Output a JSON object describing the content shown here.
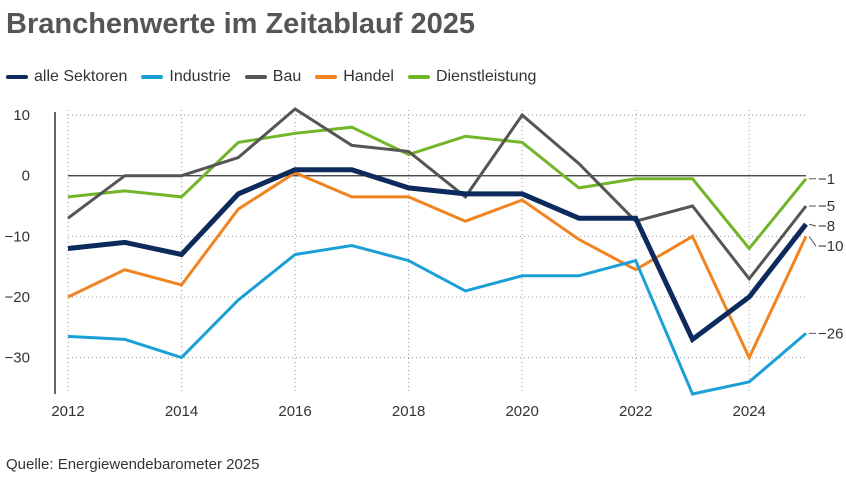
{
  "chart_data": {
    "type": "line",
    "title": "Branchenwerte im Zeitablauf 2025",
    "source": "Quelle: Energiewendebarometer 2025",
    "xlabel": "",
    "ylabel": "",
    "x": [
      2012,
      2013,
      2014,
      2015,
      2016,
      2017,
      2018,
      2019,
      2020,
      2021,
      2022,
      2023,
      2024,
      2025
    ],
    "xticks": [
      "2012",
      "2014",
      "2016",
      "2018",
      "2020",
      "2022",
      "2024"
    ],
    "xtick_values": [
      2012,
      2014,
      2016,
      2018,
      2020,
      2022,
      2024
    ],
    "xlim": [
      2012,
      2025
    ],
    "yticks": [
      10,
      0,
      -10,
      -20,
      -30
    ],
    "ytick_labels": [
      "10",
      "0",
      "−10",
      "−20",
      "−30"
    ],
    "ylim": [
      -36,
      11.5
    ],
    "grid": "dotted",
    "legend_position": "top-left",
    "series": [
      {
        "name": "alle Sektoren",
        "color": "#0d2a5c",
        "width": 5,
        "values": [
          -12,
          -11,
          -13,
          -3,
          1,
          1,
          -2,
          -3,
          -3,
          -7,
          -7,
          -27,
          -20,
          -8
        ],
        "end_label": "−8"
      },
      {
        "name": "Industrie",
        "color": "#1a9fd6",
        "width": 3,
        "values": [
          -26.5,
          -27,
          -30,
          -20.5,
          -13,
          -11.5,
          -14,
          -19,
          -16.5,
          -16.5,
          -14,
          -36,
          -34,
          -26
        ],
        "end_label": "−26"
      },
      {
        "name": "Bau",
        "color": "#555555",
        "width": 3,
        "values": [
          -7,
          0,
          0,
          3,
          11,
          5,
          4,
          -3.5,
          10,
          2,
          -7.5,
          -5,
          -17,
          -5
        ],
        "end_label": "−5"
      },
      {
        "name": "Handel",
        "color": "#ef8420",
        "width": 3,
        "values": [
          -20,
          -15.5,
          -18,
          -5.5,
          0.5,
          -3.5,
          -3.5,
          -7.5,
          -4,
          -10.5,
          -15.5,
          -10,
          -30,
          -10
        ],
        "end_label": "−10"
      },
      {
        "name": "Dienstleistung",
        "color": "#72b529",
        "width": 3,
        "values": [
          -3.5,
          -2.5,
          -3.5,
          5.5,
          7,
          8,
          3.5,
          6.5,
          5.5,
          -2,
          -0.5,
          -0.5,
          -12,
          -0.5
        ],
        "end_label": "−1"
      }
    ]
  }
}
